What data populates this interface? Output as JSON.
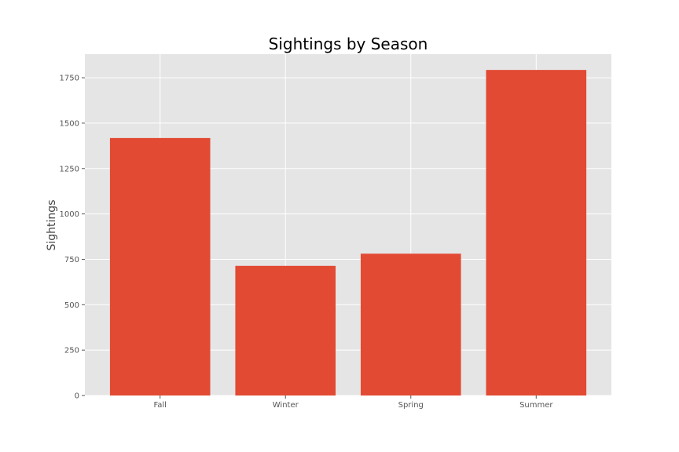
{
  "chart_data": {
    "type": "bar",
    "title": "Sightings by Season",
    "xlabel": "",
    "ylabel": "Sightings",
    "categories": [
      "Fall",
      "Winter",
      "Spring",
      "Summer"
    ],
    "values": [
      1418,
      714,
      781,
      1793
    ],
    "ylim": [
      0,
      1880
    ],
    "yticks": [
      0,
      250,
      500,
      750,
      1000,
      1250,
      1500,
      1750
    ],
    "ytick_labels": [
      "0",
      "250",
      "500",
      "750",
      "1000",
      "1250",
      "1500",
      "1750"
    ],
    "grid": true,
    "legend": "none"
  },
  "colors": {
    "bar": "#E24A33",
    "plot_background": "#E5E5E5",
    "grid": "#FFFFFF"
  }
}
